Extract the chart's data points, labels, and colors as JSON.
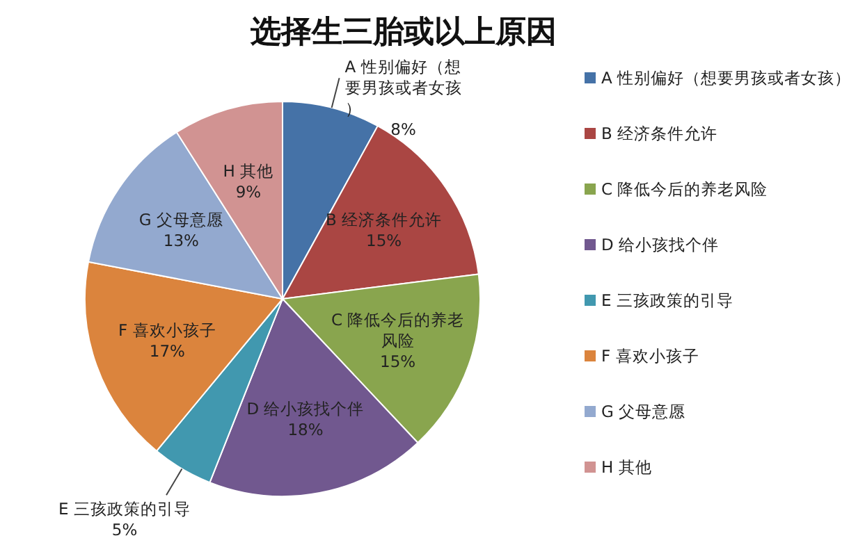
{
  "chart_data": {
    "type": "pie",
    "title": "选择生三胎或以上原因",
    "categories": [
      "A 性别偏好（想要男孩或者女孩）",
      "B 经济条件允许",
      "C 降低今后的养老风险",
      "D 给小孩找个伴",
      "E 三孩政策的引导",
      "F 喜欢小孩子",
      "G 父母意愿",
      "H 其他"
    ],
    "values": [
      8,
      15,
      15,
      18,
      5,
      17,
      13,
      9
    ],
    "colors": [
      "#4572a7",
      "#aa4643",
      "#89a54e",
      "#71588f",
      "#4198af",
      "#db843d",
      "#93a9cf",
      "#d19392"
    ],
    "value_labels": [
      "8%",
      "15%",
      "15%",
      "18%",
      "5%",
      "17%",
      "13%",
      "9%"
    ],
    "legend": "right"
  }
}
